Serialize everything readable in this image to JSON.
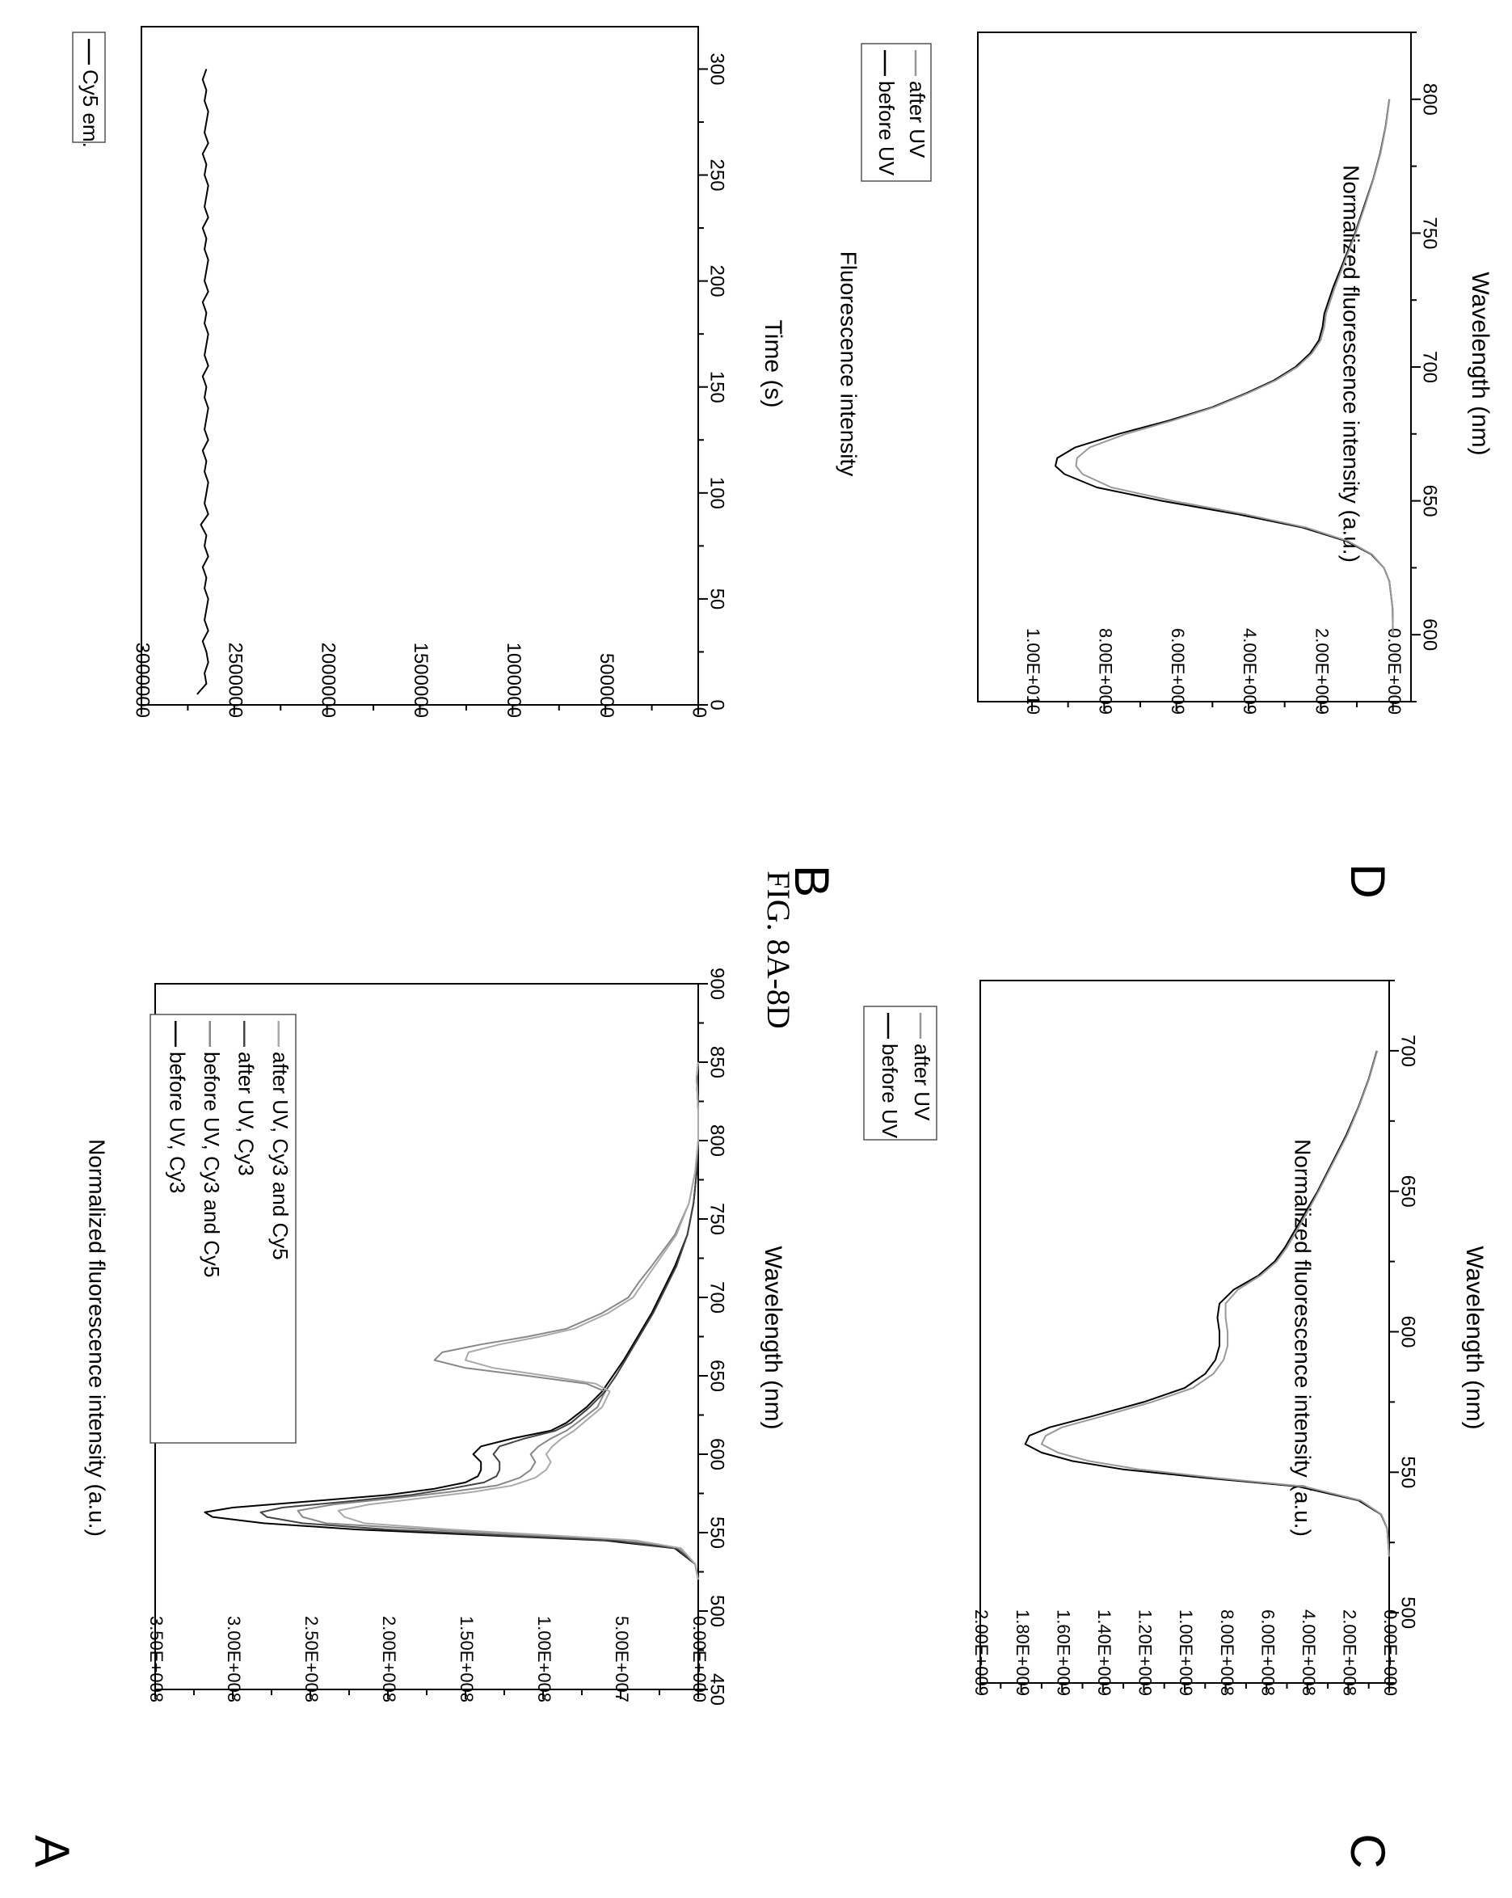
{
  "figure_title": "FIG. 8A-8D",
  "chart_data": [
    {
      "panel": "A",
      "type": "line",
      "xlabel": "Wavelength (nm)",
      "ylabel": "Normalized fluorescence intensity (a.u.)",
      "xlim": [
        450,
        900
      ],
      "ylim": [
        0,
        350000000
      ],
      "xticks": [
        450,
        500,
        550,
        600,
        650,
        700,
        750,
        800,
        850,
        900
      ],
      "yticks": [
        0,
        50000000,
        100000000,
        150000000,
        200000000,
        250000000,
        300000000,
        350000000
      ],
      "ytick_labels": [
        "0.00E+000",
        "5.00E+007",
        "1.00E+008",
        "1.50E+008",
        "2.00E+008",
        "2.50E+008",
        "3.00E+008",
        "3.50E+008"
      ],
      "legend_position": "top-right",
      "series": [
        {
          "name": "before UV, Cy3",
          "color": "#000000",
          "x": [
            520,
            530,
            540,
            545,
            548,
            552,
            556,
            560,
            563,
            566,
            570,
            574,
            578,
            582,
            586,
            590,
            595,
            600,
            605,
            610,
            615,
            620,
            630,
            640,
            650,
            660,
            670,
            680,
            690,
            700,
            720,
            740,
            760,
            780,
            800,
            820,
            840,
            850
          ],
          "y": [
            0,
            2000000,
            15000000,
            60000000,
            130000000,
            220000000,
            280000000,
            313000000,
            318000000,
            300000000,
            250000000,
            200000000,
            170000000,
            150000000,
            142000000,
            140000000,
            140000000,
            145000000,
            140000000,
            120000000,
            95000000,
            85000000,
            72000000,
            62000000,
            55000000,
            48000000,
            42000000,
            36000000,
            30000000,
            25000000,
            15000000,
            7000000,
            3000000,
            1000000,
            0,
            0,
            1000000,
            0
          ]
        },
        {
          "name": "before UV, Cy3 and Cy5",
          "color": "#888888",
          "x": [
            520,
            530,
            540,
            545,
            548,
            552,
            556,
            560,
            564,
            568,
            572,
            576,
            580,
            585,
            590,
            595,
            600,
            605,
            610,
            615,
            620,
            630,
            640,
            645,
            650,
            655,
            660,
            665,
            670,
            675,
            680,
            690,
            700,
            710,
            720,
            740,
            760,
            780,
            800,
            820,
            840,
            850
          ],
          "y": [
            0,
            2000000,
            12000000,
            45000000,
            100000000,
            175000000,
            240000000,
            255000000,
            258000000,
            235000000,
            195000000,
            160000000,
            130000000,
            115000000,
            108000000,
            105000000,
            108000000,
            103000000,
            95000000,
            85000000,
            78000000,
            65000000,
            60000000,
            72000000,
            110000000,
            150000000,
            170000000,
            165000000,
            140000000,
            110000000,
            85000000,
            62000000,
            45000000,
            38000000,
            30000000,
            15000000,
            6000000,
            2000000,
            0,
            0,
            1000000,
            0
          ]
        },
        {
          "name": "after UV, Cy3",
          "color": "#444444",
          "x": [
            520,
            530,
            540,
            545,
            548,
            552,
            556,
            560,
            563,
            566,
            570,
            574,
            578,
            582,
            586,
            590,
            595,
            600,
            605,
            610,
            615,
            620,
            630,
            640,
            650,
            660,
            670,
            680,
            690,
            700,
            720,
            740,
            760,
            780,
            800,
            820,
            840,
            850
          ],
          "y": [
            0,
            2000000,
            14000000,
            55000000,
            120000000,
            200000000,
            255000000,
            278000000,
            282000000,
            268000000,
            225000000,
            185000000,
            160000000,
            138000000,
            130000000,
            128000000,
            128000000,
            132000000,
            128000000,
            112000000,
            92000000,
            82000000,
            70000000,
            60000000,
            53000000,
            47000000,
            41000000,
            35000000,
            29000000,
            24000000,
            14000000,
            7000000,
            3000000,
            1000000,
            0,
            0,
            1000000,
            0
          ]
        },
        {
          "name": "after UV, Cy3 and Cy5",
          "color": "#aaaaaa",
          "x": [
            520,
            530,
            540,
            545,
            548,
            552,
            556,
            560,
            564,
            568,
            572,
            576,
            580,
            585,
            590,
            595,
            600,
            605,
            610,
            615,
            620,
            630,
            640,
            645,
            650,
            655,
            660,
            665,
            670,
            675,
            680,
            690,
            700,
            710,
            720,
            740,
            760,
            780,
            800,
            820,
            840,
            850
          ],
          "y": [
            0,
            2000000,
            11000000,
            40000000,
            90000000,
            160000000,
            215000000,
            228000000,
            232000000,
            212000000,
            178000000,
            145000000,
            120000000,
            105000000,
            98000000,
            95000000,
            98000000,
            94000000,
            88000000,
            80000000,
            74000000,
            62000000,
            57000000,
            66000000,
            98000000,
            132000000,
            150000000,
            148000000,
            128000000,
            102000000,
            80000000,
            58000000,
            42000000,
            35000000,
            28000000,
            14000000,
            6000000,
            2000000,
            0,
            0,
            1000000,
            0
          ]
        }
      ]
    },
    {
      "panel": "B",
      "type": "line",
      "xlabel": "Time (s)",
      "ylabel": "Fluorescence intensity",
      "xlim": [
        0,
        320
      ],
      "ylim": [
        0,
        3000000
      ],
      "xticks": [
        0,
        50,
        100,
        150,
        200,
        250,
        300
      ],
      "yticks": [
        0,
        500000,
        1000000,
        1500000,
        2000000,
        2500000,
        3000000
      ],
      "legend_position": "top-right",
      "series": [
        {
          "name": "Cy5 em.",
          "color": "#000000",
          "x": [
            5,
            7,
            10,
            15,
            20,
            25,
            30,
            35,
            40,
            45,
            50,
            55,
            60,
            65,
            70,
            75,
            80,
            85,
            90,
            95,
            100,
            105,
            110,
            115,
            120,
            125,
            130,
            135,
            140,
            145,
            150,
            155,
            160,
            165,
            170,
            175,
            180,
            185,
            190,
            195,
            200,
            205,
            210,
            215,
            220,
            225,
            230,
            235,
            240,
            245,
            250,
            255,
            260,
            265,
            270,
            275,
            280,
            285,
            290,
            295,
            300
          ],
          "y": [
            2700000,
            2680000,
            2650000,
            2660000,
            2640000,
            2650000,
            2670000,
            2640000,
            2660000,
            2650000,
            2640000,
            2660000,
            2650000,
            2670000,
            2640000,
            2660000,
            2650000,
            2680000,
            2640000,
            2660000,
            2650000,
            2640000,
            2660000,
            2650000,
            2670000,
            2640000,
            2660000,
            2650000,
            2640000,
            2660000,
            2650000,
            2670000,
            2640000,
            2660000,
            2650000,
            2640000,
            2660000,
            2650000,
            2670000,
            2640000,
            2660000,
            2650000,
            2640000,
            2660000,
            2650000,
            2670000,
            2640000,
            2660000,
            2650000,
            2640000,
            2660000,
            2650000,
            2670000,
            2640000,
            2660000,
            2650000,
            2640000,
            2660000,
            2650000,
            2670000,
            2650000
          ]
        }
      ]
    },
    {
      "panel": "C",
      "type": "line",
      "xlabel": "Wavelength (nm)",
      "ylabel": "Normalized fluorescence intensity (a.u.)",
      "xlim": [
        475,
        725
      ],
      "ylim": [
        0,
        2000000000
      ],
      "xticks": [
        500,
        550,
        600,
        650,
        700
      ],
      "yticks": [
        0,
        200000000,
        400000000,
        600000000,
        800000000,
        1000000000,
        1200000000,
        1400000000,
        1600000000,
        1800000000,
        2000000000
      ],
      "ytick_labels": [
        "0.00E+000",
        "2.00E+008",
        "4.00E+008",
        "6.00E+008",
        "8.00E+008",
        "1.00E+009",
        "1.20E+009",
        "1.40E+009",
        "1.60E+009",
        "1.80E+009",
        "2.00E+009"
      ],
      "legend_position": "top-right",
      "series": [
        {
          "name": "before UV",
          "color": "#000000",
          "x": [
            520,
            530,
            535,
            540,
            545,
            548,
            551,
            554,
            557,
            560,
            563,
            566,
            570,
            575,
            580,
            585,
            590,
            595,
            600,
            605,
            610,
            615,
            620,
            625,
            630,
            640,
            650,
            660,
            670,
            680,
            690,
            700
          ],
          "y": [
            0,
            10000000,
            40000000,
            150000000,
            450000000,
            900000000,
            1300000000,
            1550000000,
            1700000000,
            1780000000,
            1760000000,
            1660000000,
            1450000000,
            1200000000,
            1000000000,
            900000000,
            850000000,
            830000000,
            830000000,
            840000000,
            830000000,
            760000000,
            640000000,
            560000000,
            510000000,
            430000000,
            350000000,
            280000000,
            210000000,
            150000000,
            100000000,
            60000000
          ]
        },
        {
          "name": "after UV",
          "color": "#999999",
          "x": [
            520,
            530,
            535,
            540,
            545,
            548,
            551,
            554,
            557,
            560,
            563,
            566,
            570,
            575,
            580,
            585,
            590,
            595,
            600,
            605,
            610,
            615,
            620,
            625,
            630,
            640,
            650,
            660,
            670,
            680,
            690,
            700
          ],
          "y": [
            0,
            10000000,
            38000000,
            140000000,
            420000000,
            850000000,
            1220000000,
            1470000000,
            1620000000,
            1700000000,
            1680000000,
            1600000000,
            1400000000,
            1160000000,
            960000000,
            860000000,
            810000000,
            790000000,
            790000000,
            800000000,
            800000000,
            740000000,
            630000000,
            550000000,
            500000000,
            420000000,
            345000000,
            275000000,
            205000000,
            148000000,
            98000000,
            58000000
          ]
        }
      ]
    },
    {
      "panel": "D",
      "type": "line",
      "xlabel": "Wavelength (nm)",
      "ylabel": "Normalized fluorescence intensity (a.u.)",
      "xlim": [
        575,
        825
      ],
      "ylim": [
        -500000000,
        11500000000
      ],
      "xticks": [
        600,
        650,
        700,
        750,
        800
      ],
      "yticks": [
        0,
        2000000000,
        4000000000,
        6000000000,
        8000000000,
        10000000000
      ],
      "ytick_labels": [
        "0.00E+000",
        "2.00E+009",
        "4.00E+009",
        "6.00E+009",
        "8.00E+009",
        "1.00E+010"
      ],
      "legend_position": "top-right",
      "series": [
        {
          "name": "before UV",
          "color": "#000000",
          "x": [
            600,
            610,
            620,
            625,
            630,
            635,
            640,
            645,
            650,
            655,
            660,
            663,
            666,
            670,
            675,
            680,
            685,
            690,
            695,
            700,
            705,
            710,
            715,
            720,
            730,
            740,
            750,
            760,
            770,
            780,
            790,
            800
          ],
          "y": [
            0,
            10000000,
            100000000,
            250000000,
            600000000,
            1300000000,
            2500000000,
            4300000000,
            6400000000,
            8200000000,
            9100000000,
            9350000000,
            9300000000,
            8800000000,
            7600000000,
            6200000000,
            5000000000,
            4100000000,
            3300000000,
            2700000000,
            2300000000,
            2050000000,
            1950000000,
            1900000000,
            1650000000,
            1350000000,
            1050000000,
            800000000,
            550000000,
            350000000,
            200000000,
            100000000
          ]
        },
        {
          "name": "after UV",
          "color": "#999999",
          "x": [
            600,
            610,
            620,
            625,
            630,
            635,
            640,
            645,
            650,
            655,
            660,
            663,
            666,
            670,
            675,
            680,
            685,
            690,
            695,
            700,
            705,
            710,
            715,
            720,
            730,
            740,
            750,
            760,
            770,
            780,
            790,
            800
          ],
          "y": [
            0,
            10000000,
            100000000,
            250000000,
            580000000,
            1250000000,
            2400000000,
            4100000000,
            6100000000,
            7800000000,
            8600000000,
            8780000000,
            8750000000,
            8400000000,
            7400000000,
            6100000000,
            4950000000,
            4050000000,
            3250000000,
            2650000000,
            2250000000,
            2000000000,
            1900000000,
            1850000000,
            1600000000,
            1320000000,
            1030000000,
            780000000,
            540000000,
            340000000,
            195000000,
            95000000
          ]
        }
      ]
    }
  ]
}
